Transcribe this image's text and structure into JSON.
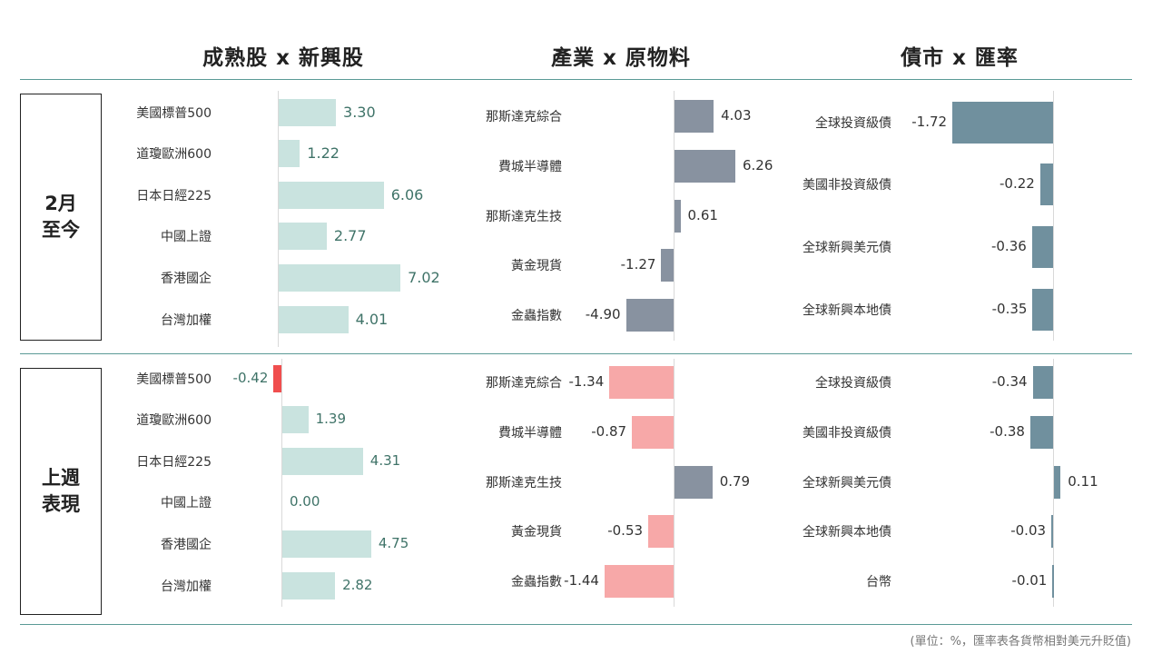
{
  "headers": [
    "成熟股 x 新興股",
    "產業 x 原物料",
    "債市 x 匯率"
  ],
  "periods": [
    {
      "line1": "2月",
      "line2": "至今"
    },
    {
      "line1": "上週",
      "line2": "表現"
    }
  ],
  "footnote": "(單位：%，匯率表各貨幣相對美元升貶值)",
  "colors": {
    "equity_positive": "#c9e3df",
    "equity_negative": "#f04e4e",
    "equity_value_text": "#3f7368",
    "sector_positive": "#8892a0",
    "sector_negative": "#f7a8a8",
    "bond": "#70909e",
    "divider": "#5b9a96",
    "axis": "#d9d9d9"
  },
  "chart_data": [
    {
      "type": "bar",
      "orientation": "horizontal",
      "title": "成熟股 x 新興股",
      "period": "2月至今",
      "categories": [
        "美國標普500",
        "道瓊歐洲600",
        "日本日經225",
        "中國上證",
        "香港國企",
        "台灣加權"
      ],
      "values": [
        3.3,
        1.22,
        6.06,
        2.77,
        7.02,
        4.01
      ],
      "labels": [
        "3.30",
        "1.22",
        "6.06",
        "2.77",
        "7.02",
        "4.01"
      ],
      "unit": "%"
    },
    {
      "type": "bar",
      "orientation": "horizontal",
      "title": "產業 x 原物料",
      "period": "2月至今",
      "categories": [
        "那斯達克綜合",
        "費城半導體",
        "那斯達克生技",
        "黃金現貨",
        "金蟲指數"
      ],
      "values": [
        4.03,
        6.26,
        0.61,
        -1.27,
        -4.9
      ],
      "labels": [
        "4.03",
        "6.26",
        "0.61",
        "-1.27",
        "-4.90"
      ],
      "unit": "%"
    },
    {
      "type": "bar",
      "orientation": "horizontal",
      "title": "債市 x 匯率",
      "period": "2月至今",
      "categories": [
        "全球投資級債",
        "美國非投資級債",
        "全球新興美元債",
        "全球新興本地債"
      ],
      "values": [
        -1.72,
        -0.22,
        -0.36,
        -0.35
      ],
      "labels": [
        "-1.72",
        "-0.22",
        "-0.36",
        "-0.35"
      ],
      "unit": "%"
    },
    {
      "type": "bar",
      "orientation": "horizontal",
      "title": "成熟股 x 新興股",
      "period": "上週表現",
      "categories": [
        "美國標普500",
        "道瓊歐洲600",
        "日本日經225",
        "中國上證",
        "香港國企",
        "台灣加權"
      ],
      "values": [
        -0.42,
        1.39,
        4.31,
        0.0,
        4.75,
        2.82
      ],
      "labels": [
        "-0.42",
        "1.39",
        "4.31",
        "0.00",
        "4.75",
        "2.82"
      ],
      "unit": "%"
    },
    {
      "type": "bar",
      "orientation": "horizontal",
      "title": "產業 x 原物料",
      "period": "上週表現",
      "categories": [
        "那斯達克綜合",
        "費城半導體",
        "那斯達克生技",
        "黃金現貨",
        "金蟲指數"
      ],
      "values": [
        -1.34,
        -0.87,
        0.79,
        -0.53,
        -1.44
      ],
      "labels": [
        "-1.34",
        "-0.87",
        "0.79",
        "-0.53",
        "-1.44"
      ],
      "unit": "%"
    },
    {
      "type": "bar",
      "orientation": "horizontal",
      "title": "債市 x 匯率",
      "period": "上週表現",
      "categories": [
        "全球投資級債",
        "美國非投資級債",
        "全球新興美元債",
        "全球新興本地債",
        "台幣"
      ],
      "values": [
        -0.34,
        -0.38,
        0.11,
        -0.03,
        -0.01
      ],
      "labels": [
        "-0.34",
        "-0.38",
        "0.11",
        "-0.03",
        "-0.01"
      ],
      "unit": "%"
    }
  ]
}
